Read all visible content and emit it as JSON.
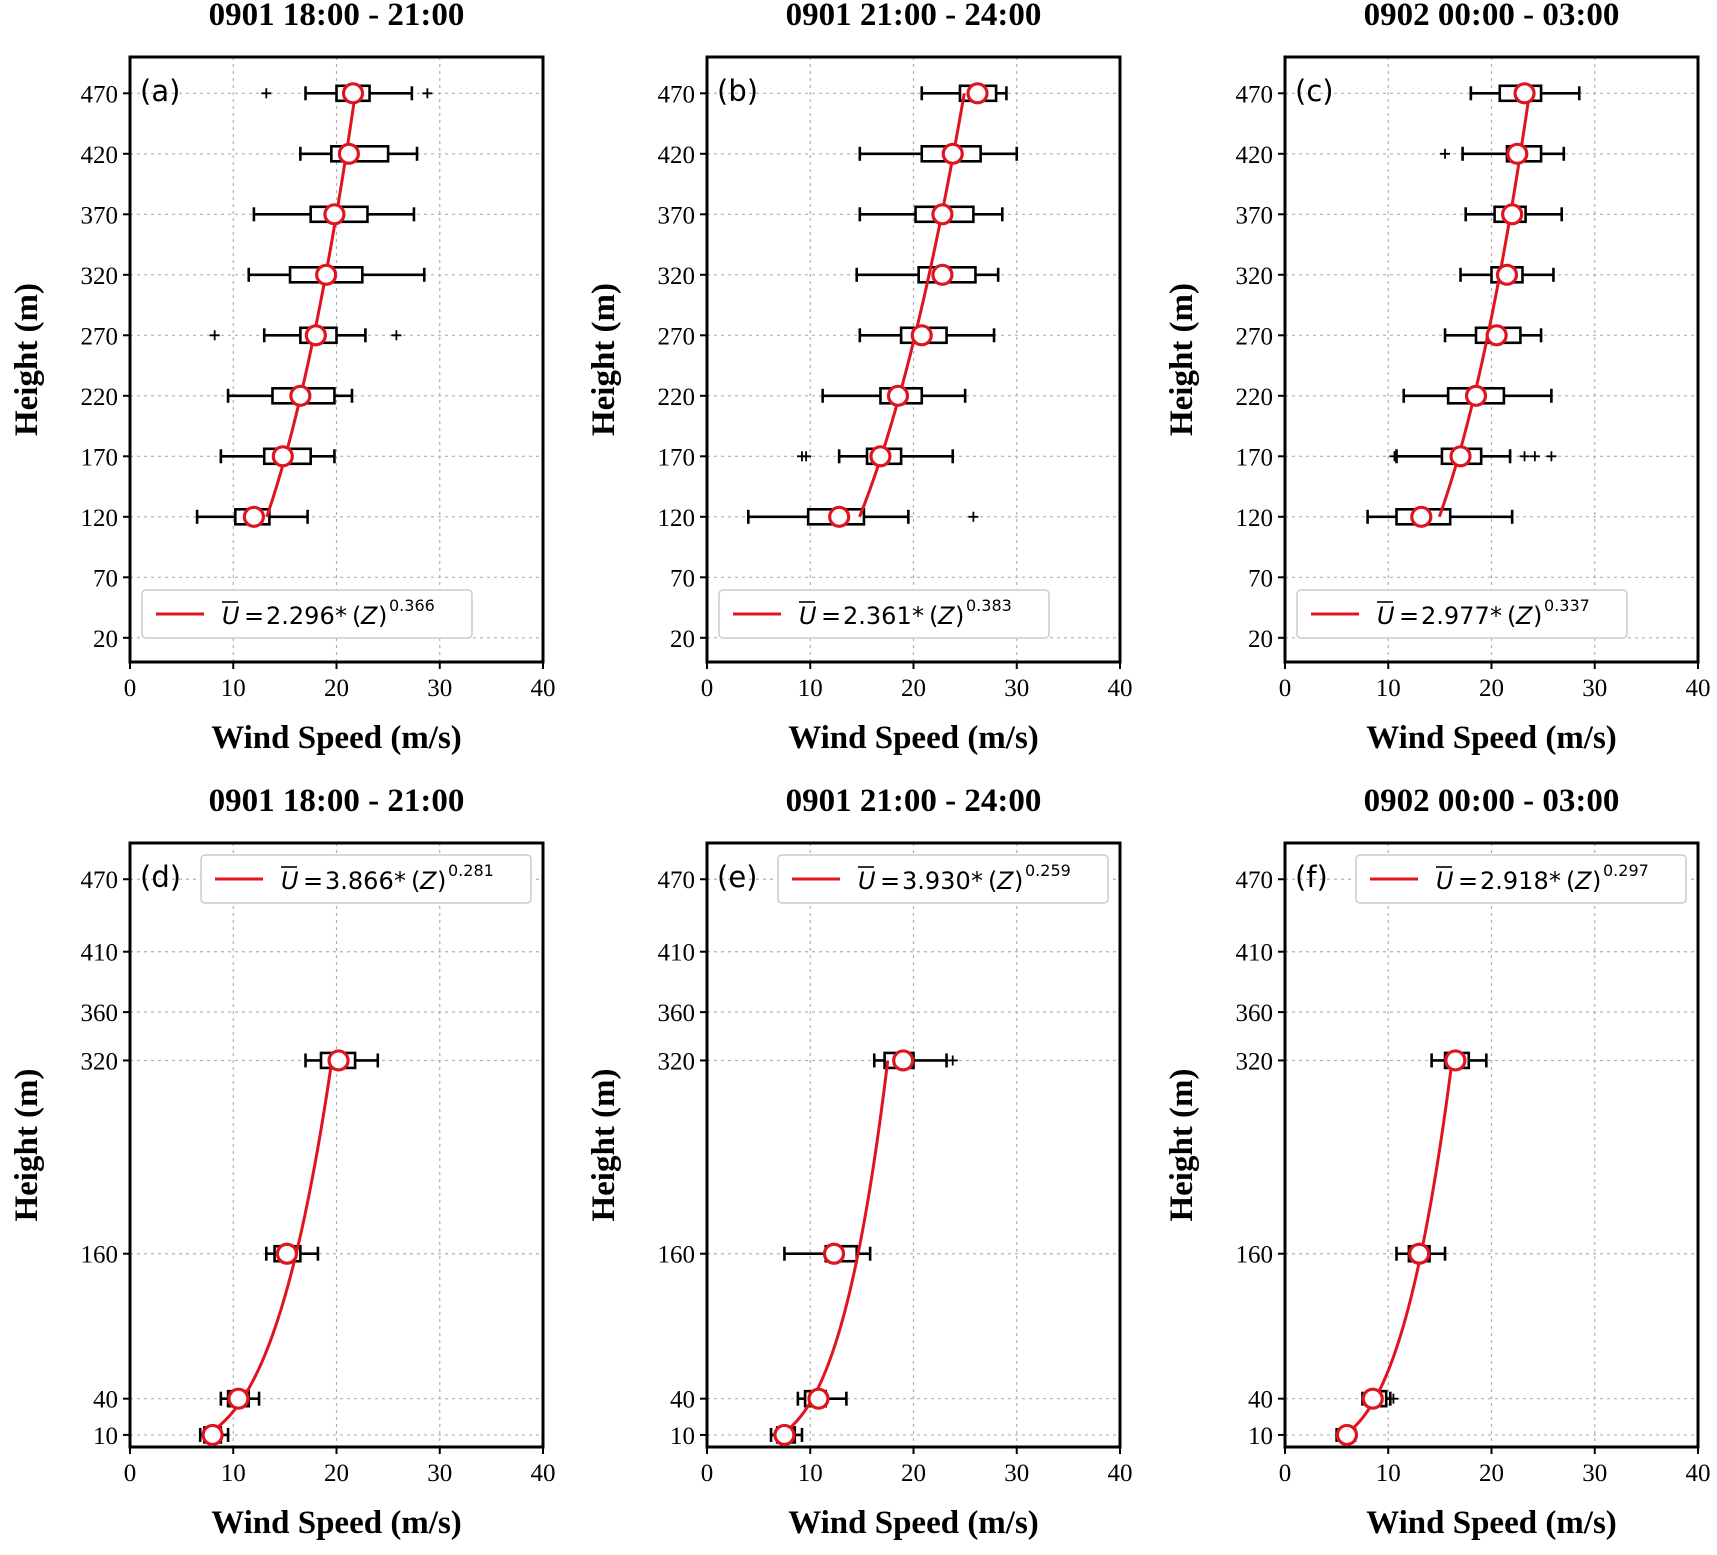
{
  "figure_kind": "wind speed profile box plots with power-law fits",
  "colors": {
    "fit": "#e0141e",
    "marker_edge": "#e0141e",
    "marker_face": "#ffffff",
    "box": "#000000",
    "grid": "#b0b0b0"
  },
  "chart_data": [
    {
      "type": "box-profile",
      "panel_label": "(a)",
      "title": "0901 18:00 - 21:00",
      "xlabel": "Wind Speed (m/s)",
      "ylabel": "Height (m)",
      "xlim": [
        0,
        40
      ],
      "xticks": [
        0,
        10,
        20,
        30,
        40
      ],
      "ylim": [
        0,
        500
      ],
      "yticks": [
        20,
        70,
        120,
        170,
        220,
        270,
        320,
        370,
        420,
        470
      ],
      "legend": {
        "position": "lower-left",
        "coef": "2.296",
        "exp": "0.366"
      },
      "fit": {
        "a": 2.296,
        "b": 0.366,
        "z_from": 120,
        "z_to": 470
      },
      "boxes": [
        {
          "height": 120,
          "wmin": 6.5,
          "q1": 10.2,
          "q3": 13.5,
          "wmax": 17.2,
          "mean": 12.0,
          "outliers": []
        },
        {
          "height": 170,
          "wmin": 8.8,
          "q1": 13.0,
          "q3": 17.5,
          "wmax": 19.8,
          "mean": 14.8,
          "outliers": []
        },
        {
          "height": 220,
          "wmin": 9.5,
          "q1": 13.8,
          "q3": 19.8,
          "wmax": 21.5,
          "mean": 16.5,
          "outliers": []
        },
        {
          "height": 270,
          "wmin": 13.0,
          "q1": 16.5,
          "q3": 20.0,
          "wmax": 22.8,
          "mean": 18.0,
          "outliers": [
            8.2,
            25.8
          ]
        },
        {
          "height": 320,
          "wmin": 11.5,
          "q1": 15.5,
          "q3": 22.5,
          "wmax": 28.5,
          "mean": 19.0,
          "outliers": []
        },
        {
          "height": 370,
          "wmin": 12.0,
          "q1": 17.5,
          "q3": 23.0,
          "wmax": 27.5,
          "mean": 19.8,
          "outliers": []
        },
        {
          "height": 420,
          "wmin": 16.5,
          "q1": 19.5,
          "q3": 25.0,
          "wmax": 27.8,
          "mean": 21.2,
          "outliers": []
        },
        {
          "height": 470,
          "wmin": 17.0,
          "q1": 20.0,
          "q3": 23.2,
          "wmax": 27.3,
          "mean": 21.6,
          "outliers": [
            13.2,
            28.8
          ]
        }
      ]
    },
    {
      "type": "box-profile",
      "panel_label": "(b)",
      "title": "0901 21:00 - 24:00",
      "xlabel": "Wind Speed (m/s)",
      "ylabel": "Height (m)",
      "xlim": [
        0,
        40
      ],
      "xticks": [
        0,
        10,
        20,
        30,
        40
      ],
      "ylim": [
        0,
        500
      ],
      "yticks": [
        20,
        70,
        120,
        170,
        220,
        270,
        320,
        370,
        420,
        470
      ],
      "legend": {
        "position": "lower-left",
        "coef": "2.361",
        "exp": "0.383"
      },
      "fit": {
        "a": 2.361,
        "b": 0.383,
        "z_from": 120,
        "z_to": 470
      },
      "boxes": [
        {
          "height": 120,
          "wmin": 4.0,
          "q1": 9.8,
          "q3": 15.2,
          "wmax": 19.5,
          "mean": 12.8,
          "outliers": [
            25.8
          ]
        },
        {
          "height": 170,
          "wmin": 12.8,
          "q1": 15.5,
          "q3": 18.8,
          "wmax": 23.8,
          "mean": 16.8,
          "outliers": [
            9.2,
            9.6
          ]
        },
        {
          "height": 220,
          "wmin": 11.2,
          "q1": 16.8,
          "q3": 20.8,
          "wmax": 25.0,
          "mean": 18.5,
          "outliers": []
        },
        {
          "height": 270,
          "wmin": 14.8,
          "q1": 18.8,
          "q3": 23.2,
          "wmax": 27.8,
          "mean": 20.8,
          "outliers": []
        },
        {
          "height": 320,
          "wmin": 14.5,
          "q1": 20.5,
          "q3": 26.0,
          "wmax": 28.2,
          "mean": 22.8,
          "outliers": []
        },
        {
          "height": 370,
          "wmin": 14.8,
          "q1": 20.2,
          "q3": 25.8,
          "wmax": 28.6,
          "mean": 22.8,
          "outliers": []
        },
        {
          "height": 420,
          "wmin": 14.8,
          "q1": 20.8,
          "q3": 26.5,
          "wmax": 30.0,
          "mean": 23.8,
          "outliers": []
        },
        {
          "height": 470,
          "wmin": 20.8,
          "q1": 24.5,
          "q3": 28.0,
          "wmax": 29.0,
          "mean": 26.2,
          "outliers": []
        }
      ]
    },
    {
      "type": "box-profile",
      "panel_label": "(c)",
      "title": "0902 00:00 - 03:00",
      "xlabel": "Wind Speed (m/s)",
      "ylabel": "Height (m)",
      "xlim": [
        0,
        40
      ],
      "xticks": [
        0,
        10,
        20,
        30,
        40
      ],
      "ylim": [
        0,
        500
      ],
      "yticks": [
        20,
        70,
        120,
        170,
        220,
        270,
        320,
        370,
        420,
        470
      ],
      "legend": {
        "position": "lower-left",
        "coef": "2.977",
        "exp": "0.337"
      },
      "fit": {
        "a": 2.977,
        "b": 0.337,
        "z_from": 120,
        "z_to": 470
      },
      "boxes": [
        {
          "height": 120,
          "wmin": 8.0,
          "q1": 10.8,
          "q3": 16.0,
          "wmax": 22.0,
          "mean": 13.2,
          "outliers": []
        },
        {
          "height": 170,
          "wmin": 10.8,
          "q1": 15.2,
          "q3": 19.0,
          "wmax": 21.8,
          "mean": 17.0,
          "outliers": [
            10.6,
            23.2,
            24.2,
            25.8
          ]
        },
        {
          "height": 220,
          "wmin": 11.5,
          "q1": 15.8,
          "q3": 21.2,
          "wmax": 25.8,
          "mean": 18.5,
          "outliers": []
        },
        {
          "height": 270,
          "wmin": 15.5,
          "q1": 18.5,
          "q3": 22.8,
          "wmax": 24.8,
          "mean": 20.5,
          "outliers": []
        },
        {
          "height": 320,
          "wmin": 17.0,
          "q1": 20.0,
          "q3": 23.0,
          "wmax": 26.0,
          "mean": 21.5,
          "outliers": []
        },
        {
          "height": 370,
          "wmin": 17.5,
          "q1": 20.3,
          "q3": 23.3,
          "wmax": 26.8,
          "mean": 22.0,
          "outliers": []
        },
        {
          "height": 420,
          "wmin": 17.2,
          "q1": 21.5,
          "q3": 24.8,
          "wmax": 27.0,
          "mean": 22.5,
          "outliers": [
            15.5
          ]
        },
        {
          "height": 470,
          "wmin": 18.0,
          "q1": 20.8,
          "q3": 24.8,
          "wmax": 28.5,
          "mean": 23.2,
          "outliers": []
        }
      ]
    },
    {
      "type": "box-profile",
      "panel_label": "(d)",
      "title": "0901 18:00 - 21:00",
      "xlabel": "Wind Speed (m/s)",
      "ylabel": "Height (m)",
      "xlim": [
        0,
        40
      ],
      "xticks": [
        0,
        10,
        20,
        30,
        40
      ],
      "ylim": [
        0,
        500
      ],
      "yticks": [
        10,
        40,
        160,
        320,
        360,
        410,
        470
      ],
      "legend": {
        "position": "upper-right",
        "coef": "3.866",
        "exp": "0.281"
      },
      "fit": {
        "a": 3.866,
        "b": 0.281,
        "z_from": 10,
        "z_to": 320
      },
      "boxes": [
        {
          "height": 10,
          "wmin": 6.8,
          "q1": 7.2,
          "q3": 8.8,
          "wmax": 9.5,
          "mean": 8.0,
          "outliers": []
        },
        {
          "height": 40,
          "wmin": 8.8,
          "q1": 9.5,
          "q3": 11.5,
          "wmax": 12.5,
          "mean": 10.5,
          "outliers": []
        },
        {
          "height": 160,
          "wmin": 13.2,
          "q1": 14.0,
          "q3": 16.5,
          "wmax": 18.2,
          "mean": 15.2,
          "outliers": []
        },
        {
          "height": 320,
          "wmin": 17.0,
          "q1": 18.5,
          "q3": 21.8,
          "wmax": 24.0,
          "mean": 20.2,
          "outliers": []
        }
      ]
    },
    {
      "type": "box-profile",
      "panel_label": "(e)",
      "title": "0901 21:00 - 24:00",
      "xlabel": "Wind Speed (m/s)",
      "ylabel": "Height (m)",
      "xlim": [
        0,
        40
      ],
      "xticks": [
        0,
        10,
        20,
        30,
        40
      ],
      "ylim": [
        0,
        500
      ],
      "yticks": [
        10,
        40,
        160,
        320,
        360,
        410,
        470
      ],
      "legend": {
        "position": "upper-right",
        "coef": "3.930",
        "exp": "0.259"
      },
      "fit": {
        "a": 3.93,
        "b": 0.259,
        "z_from": 10,
        "z_to": 320
      },
      "boxes": [
        {
          "height": 10,
          "wmin": 6.2,
          "q1": 6.8,
          "q3": 8.5,
          "wmax": 9.2,
          "mean": 7.5,
          "outliers": []
        },
        {
          "height": 40,
          "wmin": 8.8,
          "q1": 9.5,
          "q3": 11.5,
          "wmax": 13.5,
          "mean": 10.8,
          "outliers": []
        },
        {
          "height": 160,
          "wmin": 7.5,
          "q1": 11.5,
          "q3": 14.5,
          "wmax": 15.8,
          "mean": 12.3,
          "outliers": []
        },
        {
          "height": 320,
          "wmin": 16.2,
          "q1": 17.2,
          "q3": 20.0,
          "wmax": 23.2,
          "mean": 19.0,
          "outliers": [
            23.8
          ]
        }
      ]
    },
    {
      "type": "box-profile",
      "panel_label": "(f)",
      "title": "0902 00:00 - 03:00",
      "xlabel": "Wind Speed (m/s)",
      "ylabel": "Height (m)",
      "xlim": [
        0,
        40
      ],
      "xticks": [
        0,
        10,
        20,
        30,
        40
      ],
      "ylim": [
        0,
        500
      ],
      "yticks": [
        10,
        40,
        160,
        320,
        360,
        410,
        470
      ],
      "legend": {
        "position": "upper-right",
        "coef": "2.918",
        "exp": "0.297"
      },
      "fit": {
        "a": 2.918,
        "b": 0.297,
        "z_from": 10,
        "z_to": 320
      },
      "boxes": [
        {
          "height": 10,
          "wmin": 5.0,
          "q1": 5.6,
          "q3": 6.4,
          "wmax": 6.8,
          "mean": 6.0,
          "outliers": []
        },
        {
          "height": 40,
          "wmin": 7.5,
          "q1": 8.0,
          "q3": 9.8,
          "wmax": 10.2,
          "mean": 8.5,
          "outliers": [
            10.5
          ]
        },
        {
          "height": 160,
          "wmin": 10.8,
          "q1": 12.0,
          "q3": 14.0,
          "wmax": 15.5,
          "mean": 13.0,
          "outliers": []
        },
        {
          "height": 320,
          "wmin": 14.2,
          "q1": 15.5,
          "q3": 17.8,
          "wmax": 19.5,
          "mean": 16.5,
          "outliers": []
        }
      ]
    }
  ]
}
